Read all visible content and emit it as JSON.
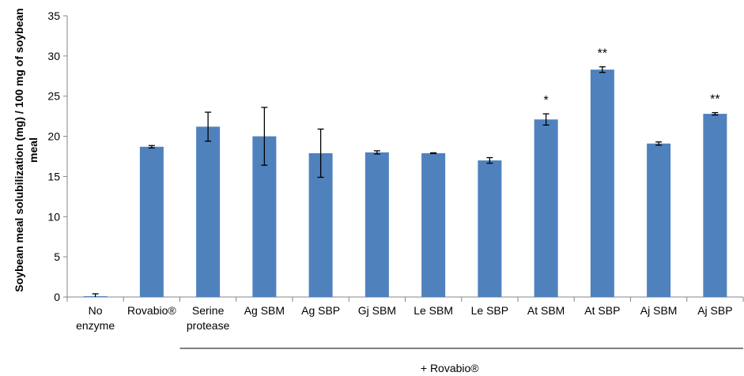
{
  "chart_data": {
    "type": "bar",
    "ylabel": "Soybean meal solubilization (mg) / 100 mg of soybean meal",
    "ylim": [
      0,
      35
    ],
    "yticks": [
      0,
      5,
      10,
      15,
      20,
      25,
      30,
      35
    ],
    "grid": false,
    "legend": "none",
    "bar_color": "#4f81bd",
    "categories": [
      [
        "No",
        "enzyme"
      ],
      [
        "Rovabio®"
      ],
      [
        "Serine",
        "protease"
      ],
      [
        "Ag SBM"
      ],
      [
        "Ag SBP"
      ],
      [
        "Gj SBM"
      ],
      [
        "Le SBM"
      ],
      [
        "Le SBP"
      ],
      [
        "At SBM"
      ],
      [
        "At SBP"
      ],
      [
        "Aj SBM"
      ],
      [
        "Aj SBP"
      ]
    ],
    "values": [
      0.1,
      18.7,
      21.2,
      20.0,
      17.9,
      18.0,
      17.9,
      17.0,
      22.1,
      28.3,
      19.1,
      22.8
    ],
    "errors": [
      0.3,
      0.15,
      1.8,
      3.6,
      3.0,
      0.2,
      0.05,
      0.35,
      0.7,
      0.35,
      0.2,
      0.15
    ],
    "annotations": [
      "",
      "",
      "",
      "",
      "",
      "",
      "",
      "",
      "*",
      "**",
      "",
      "**"
    ],
    "group_label": "+ Rovabio®",
    "group_span": [
      2,
      11
    ]
  }
}
